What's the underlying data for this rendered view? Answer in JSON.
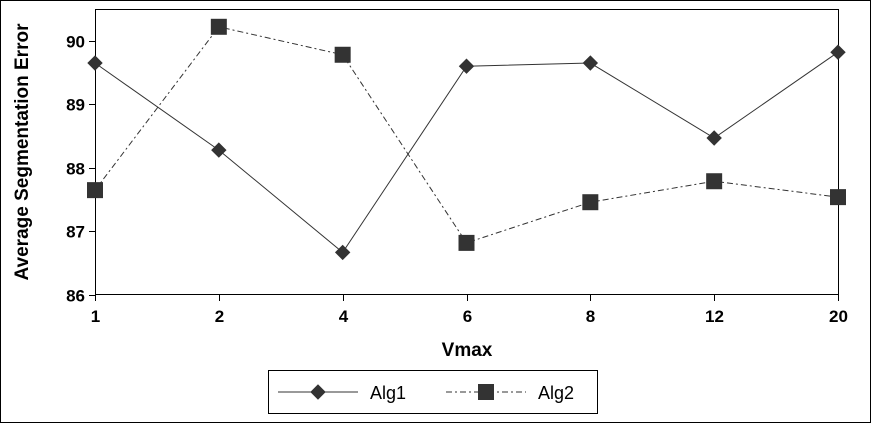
{
  "chart_data": {
    "type": "line",
    "title": "",
    "xlabel": "Vmax",
    "ylabel": "Average Segmentation Error",
    "categories": [
      "1",
      "2",
      "4",
      "6",
      "8",
      "12",
      "20"
    ],
    "ylim": [
      86,
      90.5
    ],
    "yticks": [
      "86",
      "87",
      "88",
      "89",
      "90"
    ],
    "grid": false,
    "legend_position": "bottom",
    "series": [
      {
        "name": "Alg1",
        "values": [
          89.65,
          88.28,
          86.67,
          89.6,
          89.65,
          88.47,
          89.82
        ],
        "color": "#333333",
        "marker": "diamond",
        "line_style": "solid"
      },
      {
        "name": "Alg2",
        "values": [
          87.65,
          90.22,
          89.78,
          86.82,
          87.46,
          87.79,
          87.54
        ],
        "color": "#333333",
        "marker": "square",
        "line_style": "dash-dot"
      }
    ]
  }
}
